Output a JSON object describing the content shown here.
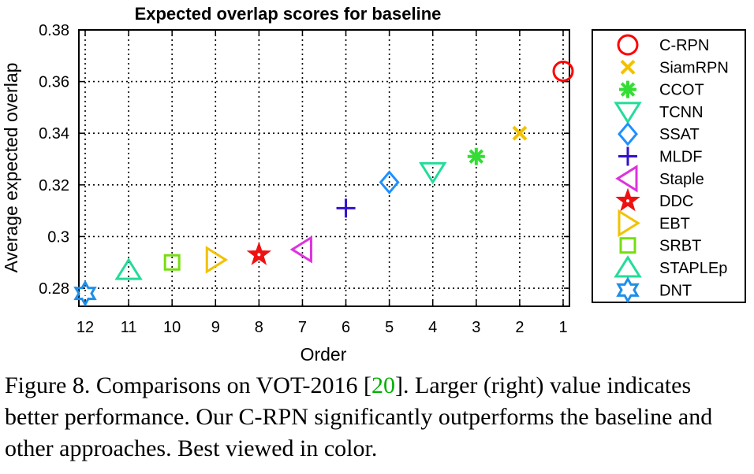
{
  "chart_data": {
    "type": "scatter",
    "title": "Expected overlap scores for baseline",
    "xlabel": "Order",
    "ylabel": "Average expected overlap",
    "x_ticks": [
      12,
      11,
      10,
      9,
      8,
      7,
      6,
      5,
      4,
      3,
      2,
      1
    ],
    "y_ticks": [
      "0.28",
      "0.3",
      "0.32",
      "0.34",
      "0.36",
      "0.38"
    ],
    "xlim": [
      12,
      1
    ],
    "ylim": [
      0.273,
      0.38
    ],
    "grid": true,
    "legend_position": "right",
    "series": [
      {
        "name": "C-RPN",
        "x": 1,
        "y": 0.364,
        "marker": "circle",
        "color": "#ff0000"
      },
      {
        "name": "SiamRPN",
        "x": 2,
        "y": 0.34,
        "marker": "x",
        "color": "#f2c100"
      },
      {
        "name": "CCOT",
        "x": 3,
        "y": 0.331,
        "marker": "asterisk",
        "color": "#33dd33"
      },
      {
        "name": "TCNN",
        "x": 4,
        "y": 0.325,
        "marker": "triangle-down",
        "color": "#22dd99"
      },
      {
        "name": "SSAT",
        "x": 5,
        "y": 0.321,
        "marker": "diamond",
        "color": "#1e90ff"
      },
      {
        "name": "MLDF",
        "x": 6,
        "y": 0.311,
        "marker": "plus",
        "color": "#3311cc"
      },
      {
        "name": "Staple",
        "x": 7,
        "y": 0.295,
        "marker": "triangle-left",
        "color": "#dd33dd"
      },
      {
        "name": "DDC",
        "x": 8,
        "y": 0.293,
        "marker": "pentagram",
        "color": "#ee1111"
      },
      {
        "name": "EBT",
        "x": 9,
        "y": 0.291,
        "marker": "triangle-right",
        "color": "#f2c100"
      },
      {
        "name": "SRBT",
        "x": 10,
        "y": 0.29,
        "marker": "square",
        "color": "#77dd11"
      },
      {
        "name": "STAPLEp",
        "x": 11,
        "y": 0.287,
        "marker": "triangle-up",
        "color": "#22dd99"
      },
      {
        "name": "DNT",
        "x": 12,
        "y": 0.278,
        "marker": "hexagram",
        "color": "#1e8fe8"
      }
    ]
  },
  "caption": {
    "before": "Figure 8. Comparisons on VOT-2016 [",
    "ref": "20",
    "after": "]. Larger (right) value indicates better performance. Our C-RPN significantly outperforms the baseline and other approaches. Best viewed in color."
  }
}
